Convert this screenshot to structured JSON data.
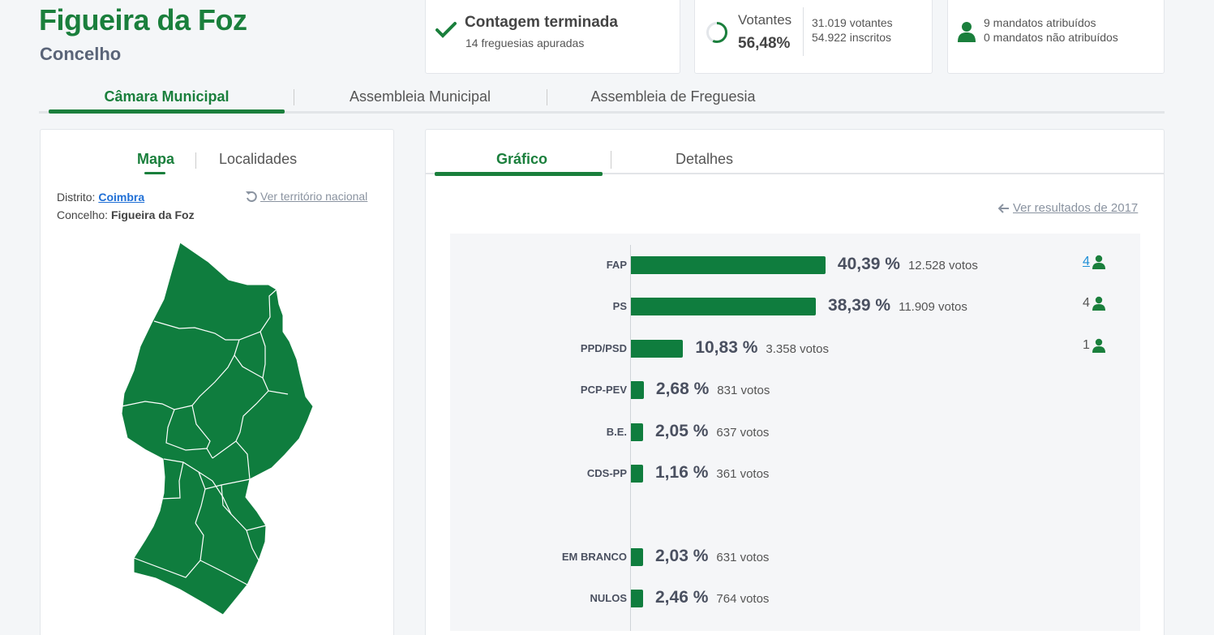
{
  "header": {
    "title": "Figueira da Foz",
    "subtitle": "Concelho"
  },
  "status": {
    "title": "Contagem terminada",
    "subtitle": "14 freguesias apuradas"
  },
  "voters": {
    "label": "Votantes",
    "percent": "56,48%",
    "percent_value": 56.48,
    "votes": "31.019 votantes",
    "registered": "54.922 inscritos"
  },
  "mandates": {
    "assigned": "9 mandatos atribuídos",
    "unassigned": "0 mandatos não atribuídos"
  },
  "main_tabs": [
    {
      "label": "Câmara Municipal",
      "active": true
    },
    {
      "label": "Assembleia Municipal",
      "active": false
    },
    {
      "label": "Assembleia de Freguesia",
      "active": false
    }
  ],
  "map_panel": {
    "tabs": [
      {
        "label": "Mapa",
        "active": true
      },
      {
        "label": "Localidades",
        "active": false
      }
    ],
    "district_label": "Distrito:",
    "district_value": "Coimbra",
    "council_label": "Concelho:",
    "council_value": "Figueira da Foz",
    "reset_link": "Ver território nacional",
    "map_color": "#0f7d3e"
  },
  "chart_panel": {
    "tabs": [
      {
        "label": "Gráfico",
        "active": true
      },
      {
        "label": "Detalhes",
        "active": false
      }
    ],
    "previous_link": "Ver resultados de 2017"
  },
  "chart_data": {
    "type": "bar",
    "orientation": "horizontal",
    "bar_color": "#0f7d3e",
    "categories": [
      "FAP",
      "PS",
      "PPD/PSD",
      "PCP-PEV",
      "B.E.",
      "CDS-PP",
      "EM BRANCO",
      "NULOS"
    ],
    "values": [
      40.39,
      38.39,
      10.83,
      2.68,
      2.05,
      1.16,
      2.03,
      2.46
    ],
    "value_labels": [
      "40,39 %",
      "38,39 %",
      "10,83 %",
      "2,68 %",
      "2,05 %",
      "1,16 %",
      "2,03 %",
      "2,46 %"
    ],
    "votes": [
      "12.528 votos",
      "11.909 votos",
      "3.358 votos",
      "831 votos",
      "637 votos",
      "361 votos",
      "631 votos",
      "764 votos"
    ],
    "seats": [
      "4",
      "4",
      "1",
      "",
      "",
      "",
      "",
      ""
    ]
  },
  "colors": {
    "brand_green": "#1a7f3c",
    "link_blue": "#1f6fd6"
  }
}
